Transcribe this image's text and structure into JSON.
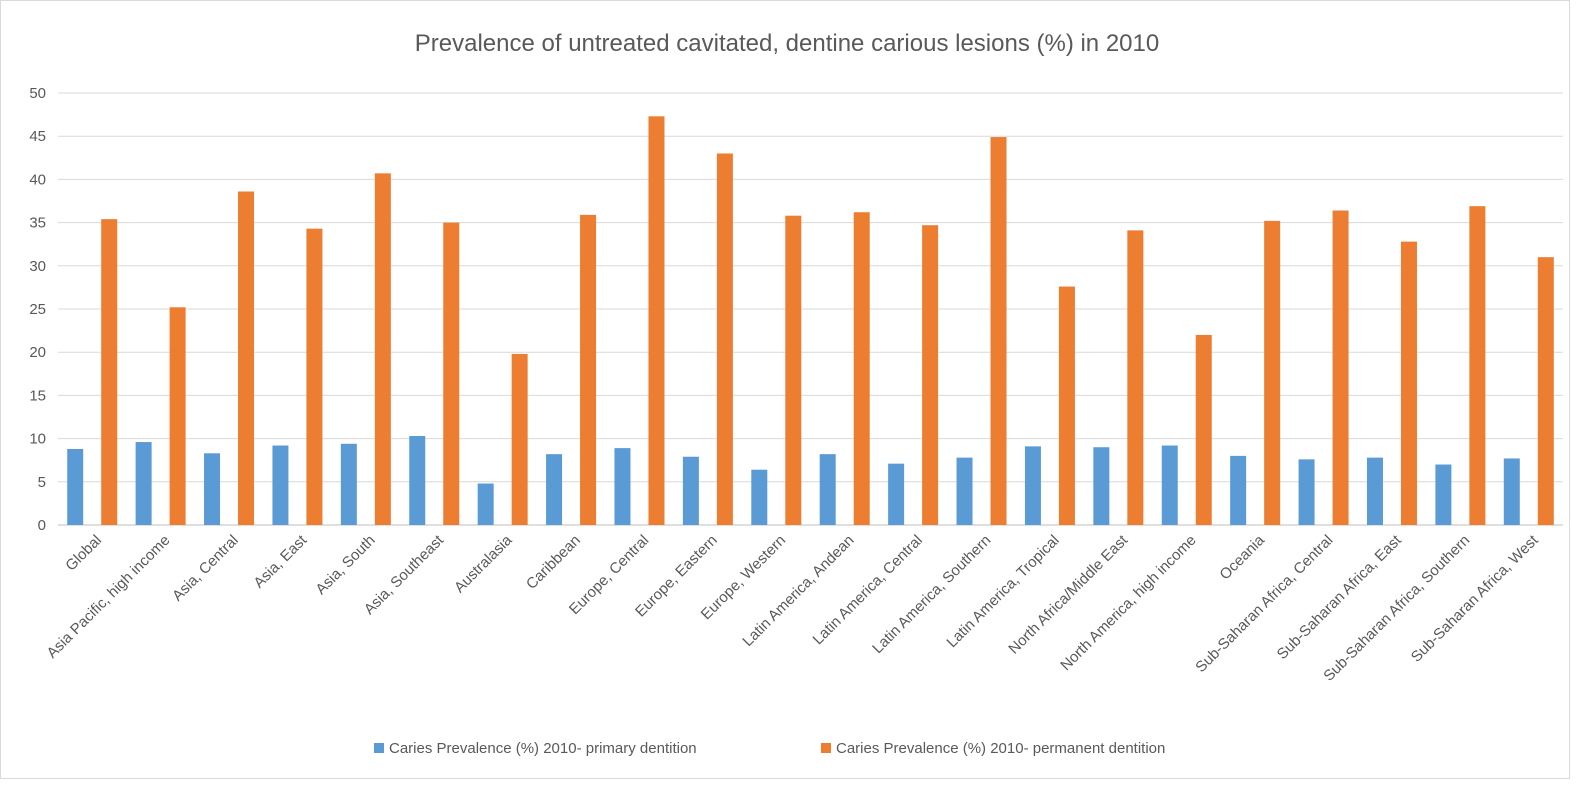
{
  "chart_data": {
    "type": "bar",
    "title": "Prevalence of untreated cavitated, dentine carious lesions (%) in 2010",
    "xlabel": "",
    "ylabel": "",
    "ylim": [
      0,
      50
    ],
    "yticks": [
      0,
      5,
      10,
      15,
      20,
      25,
      30,
      35,
      40,
      45,
      50
    ],
    "grid": true,
    "legend_position": "bottom",
    "categories": [
      "Global",
      "Asia Pacific, high income",
      "Asia, Central",
      "Asia, East",
      "Asia, South",
      "Asia, Southeast",
      "Australasia",
      "Caribbean",
      "Europe, Central",
      "Europe, Eastern",
      "Europe, Western",
      "Latin America, Andean",
      "Latin America, Central",
      "Latin America, Southern",
      "Latin America, Tropical",
      "North Africa/Middle East",
      "North America, high income",
      "Oceania",
      "Sub-Saharan Africa, Central",
      "Sub-Saharan Africa, East",
      "Sub-Saharan Africa, Southern",
      "Sub-Saharan Africa, West"
    ],
    "series": [
      {
        "name": "Caries Prevalence (%) 2010- primary dentition",
        "color": "#5b9bd5",
        "values": [
          8.8,
          9.6,
          8.3,
          9.2,
          9.4,
          10.3,
          4.8,
          8.2,
          8.9,
          7.9,
          6.4,
          8.2,
          7.1,
          7.8,
          9.1,
          9.0,
          9.2,
          8.0,
          7.6,
          7.8,
          7.0,
          7.7
        ]
      },
      {
        "name": "Caries Prevalence (%) 2010- permanent  dentition",
        "color": "#ed7d31",
        "values": [
          35.4,
          25.2,
          38.6,
          34.3,
          40.7,
          35.0,
          19.8,
          35.9,
          47.3,
          43.0,
          35.8,
          36.2,
          34.7,
          44.9,
          27.6,
          34.1,
          22.0,
          35.2,
          36.4,
          32.8,
          36.9,
          31.0
        ]
      }
    ]
  }
}
